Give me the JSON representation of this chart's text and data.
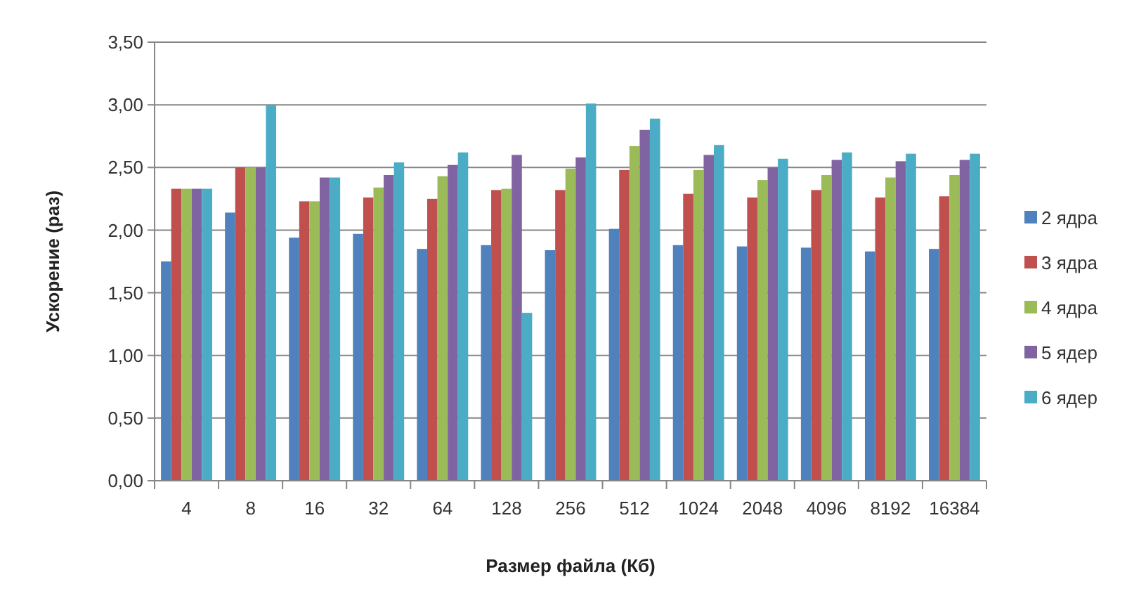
{
  "chart_data": {
    "type": "bar",
    "xlabel": "Размер файла (Кб)",
    "ylabel": "Ускорение (раз)",
    "categories": [
      "4",
      "8",
      "16",
      "32",
      "64",
      "128",
      "256",
      "512",
      "1024",
      "2048",
      "4096",
      "8192",
      "16384"
    ],
    "series": [
      {
        "name": "2 ядра",
        "color": "#4f81bd",
        "values": [
          1.75,
          2.14,
          1.94,
          1.97,
          1.85,
          1.88,
          1.84,
          2.01,
          1.88,
          1.87,
          1.86,
          1.83,
          1.85
        ]
      },
      {
        "name": "3 ядра",
        "color": "#c0504d",
        "values": [
          2.33,
          2.5,
          2.23,
          2.26,
          2.25,
          2.32,
          2.32,
          2.48,
          2.29,
          2.26,
          2.32,
          2.26,
          2.27
        ]
      },
      {
        "name": "4 ядра",
        "color": "#9bbb59",
        "values": [
          2.33,
          2.5,
          2.23,
          2.34,
          2.43,
          2.33,
          2.49,
          2.67,
          2.48,
          2.4,
          2.44,
          2.42,
          2.44
        ]
      },
      {
        "name": "5 ядер",
        "color": "#8064a2",
        "values": [
          2.33,
          2.5,
          2.42,
          2.44,
          2.52,
          2.6,
          2.58,
          2.8,
          2.6,
          2.5,
          2.56,
          2.55,
          2.56
        ]
      },
      {
        "name": "6 ядер",
        "color": "#4bacc6",
        "values": [
          2.33,
          3.0,
          2.42,
          2.54,
          2.62,
          1.34,
          3.01,
          2.89,
          2.68,
          2.57,
          2.62,
          2.61,
          2.61
        ]
      }
    ],
    "ylim": [
      0,
      3.5
    ],
    "yticks": [
      {
        "value": 0,
        "label": "0,00"
      },
      {
        "value": 0.5,
        "label": "0,50"
      },
      {
        "value": 1,
        "label": "1,00"
      },
      {
        "value": 1.5,
        "label": "1,50"
      },
      {
        "value": 2,
        "label": "2,00"
      },
      {
        "value": 2.5,
        "label": "2,50"
      },
      {
        "value": 3,
        "label": "3,00"
      },
      {
        "value": 3.5,
        "label": "3,50"
      }
    ],
    "grid": "y",
    "legend": "right"
  }
}
